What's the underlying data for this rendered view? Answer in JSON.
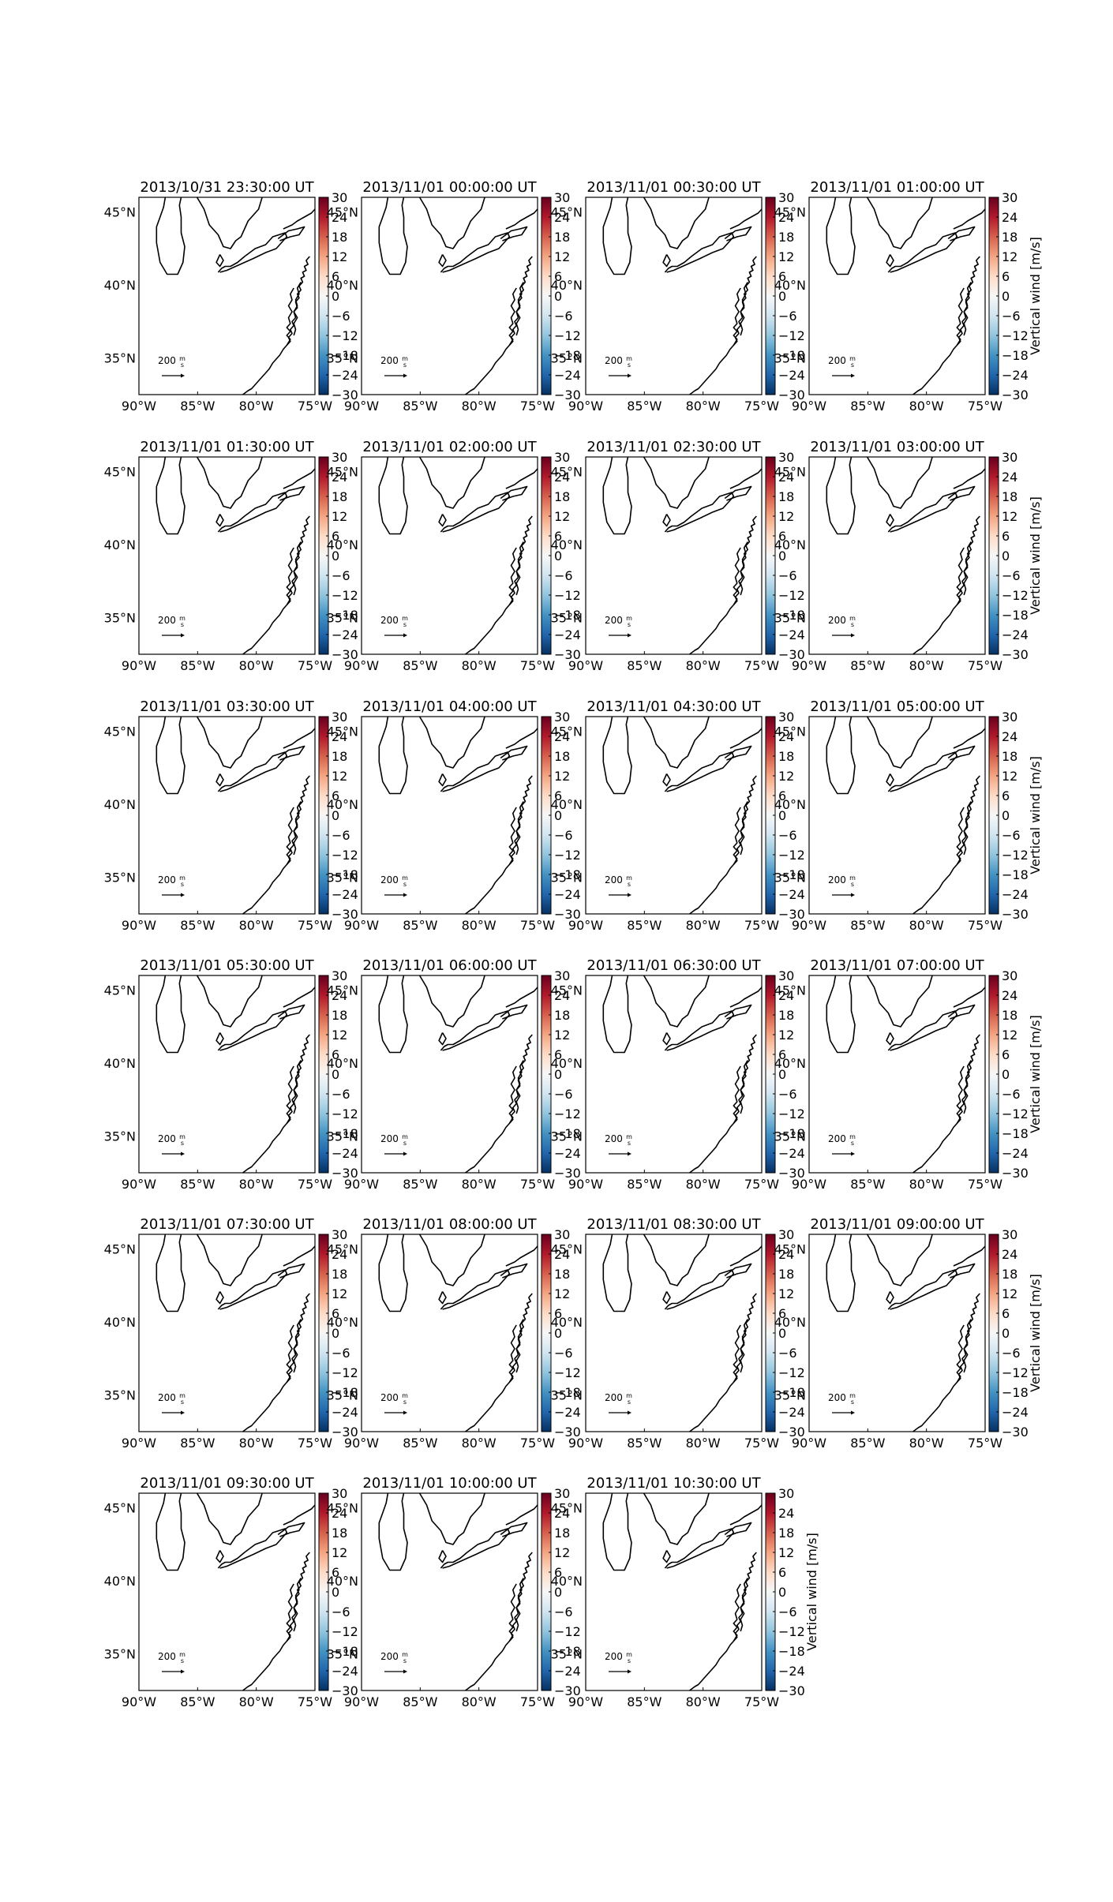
{
  "chart_data": {
    "type": "map",
    "layout": {
      "rows": 6,
      "cols": 4
    },
    "panel_titles": [
      "2013/10/31 23:30:00 UT",
      "2013/11/01 00:00:00 UT",
      "2013/11/01 00:30:00 UT",
      "2013/11/01 01:00:00 UT",
      "2013/11/01 01:30:00 UT",
      "2013/11/01 02:00:00 UT",
      "2013/11/01 02:30:00 UT",
      "2013/11/01 03:00:00 UT",
      "2013/11/01 03:30:00 UT",
      "2013/11/01 04:00:00 UT",
      "2013/11/01 04:30:00 UT",
      "2013/11/01 05:00:00 UT",
      "2013/11/01 05:30:00 UT",
      "2013/11/01 06:00:00 UT",
      "2013/11/01 06:30:00 UT",
      "2013/11/01 07:00:00 UT",
      "2013/11/01 07:30:00 UT",
      "2013/11/01 08:00:00 UT",
      "2013/11/01 08:30:00 UT",
      "2013/11/01 09:00:00 UT",
      "2013/11/01 09:30:00 UT",
      "2013/11/01 10:00:00 UT",
      "2013/11/01 10:30:00 UT"
    ],
    "lon_range": [
      -90,
      -75
    ],
    "lat_range": [
      32.5,
      46
    ],
    "x_ticks": [
      "90°W",
      "85°W",
      "80°W",
      "75°W"
    ],
    "x_tick_values": [
      -90,
      -85,
      -80,
      -75
    ],
    "y_ticks": [
      "45°N",
      "40°N",
      "35°N"
    ],
    "y_tick_values": [
      45,
      40,
      35
    ],
    "colorbar": {
      "label": "Vertical wind [m/s]",
      "range": [
        -30,
        30
      ],
      "ticks": [
        "30",
        "24",
        "18",
        "12",
        "6",
        "0",
        "−6",
        "−12",
        "−18",
        "−24",
        "−30"
      ],
      "tick_values": [
        30,
        24,
        18,
        12,
        6,
        0,
        -6,
        -12,
        -18,
        -24,
        -30
      ],
      "colormap": "RdBu_r",
      "colors": [
        "#053061",
        "#2166ac",
        "#4393c3",
        "#92c5de",
        "#d1e5f0",
        "#f7f7f7",
        "#fddbc7",
        "#f4a582",
        "#d6604d",
        "#b2182b",
        "#67001f"
      ]
    },
    "reference_vector": {
      "value": "200",
      "unit_num": "m",
      "unit_den": "s"
    }
  }
}
